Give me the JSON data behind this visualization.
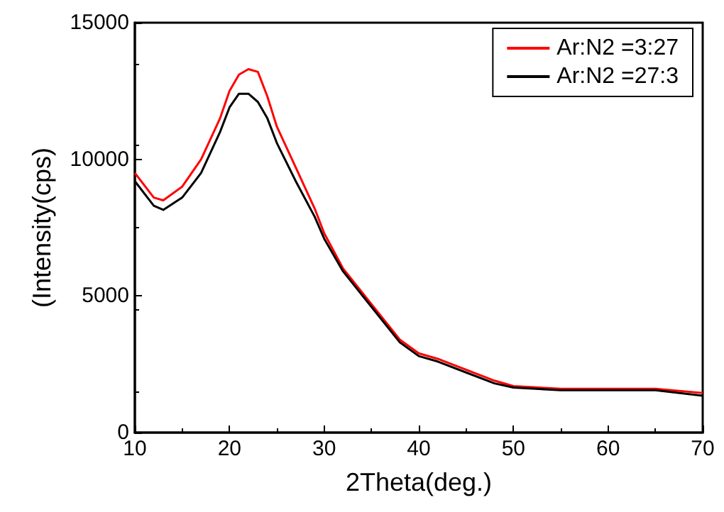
{
  "chart_data": {
    "type": "line",
    "xlabel": "2Theta(deg.)",
    "ylabel": "(Intensity(cps)",
    "xlim": [
      10,
      70
    ],
    "xticks": [
      10,
      20,
      30,
      40,
      50,
      60,
      70
    ],
    "ylim": [
      0,
      15000
    ],
    "yticks": [
      0,
      5000,
      10000,
      15000
    ],
    "legend": "top right",
    "grid": false,
    "marker": "none",
    "line_style": "solid",
    "x": [
      10,
      12,
      13,
      15,
      17,
      19,
      20,
      21,
      22,
      23,
      24,
      25,
      27,
      29,
      30,
      32,
      35,
      38,
      40,
      42,
      45,
      48,
      50,
      55,
      60,
      65,
      70
    ],
    "series": [
      {
        "name": "Ar:N2 =3:27",
        "color": "#ff0000",
        "values": [
          9500,
          8600,
          8500,
          9000,
          10000,
          11500,
          12500,
          13100,
          13300,
          13200,
          12300,
          11200,
          9700,
          8200,
          7300,
          6000,
          4700,
          3400,
          2900,
          2700,
          2300,
          1900,
          1700,
          1600,
          1600,
          1600,
          1450
        ]
      },
      {
        "name": "Ar:N2 =27:3",
        "color": "#000000",
        "values": [
          9200,
          8300,
          8150,
          8600,
          9500,
          11000,
          11900,
          12400,
          12400,
          12100,
          11500,
          10600,
          9200,
          7900,
          7100,
          5900,
          4600,
          3300,
          2800,
          2600,
          2200,
          1800,
          1650,
          1550,
          1550,
          1550,
          1350
        ]
      }
    ]
  }
}
